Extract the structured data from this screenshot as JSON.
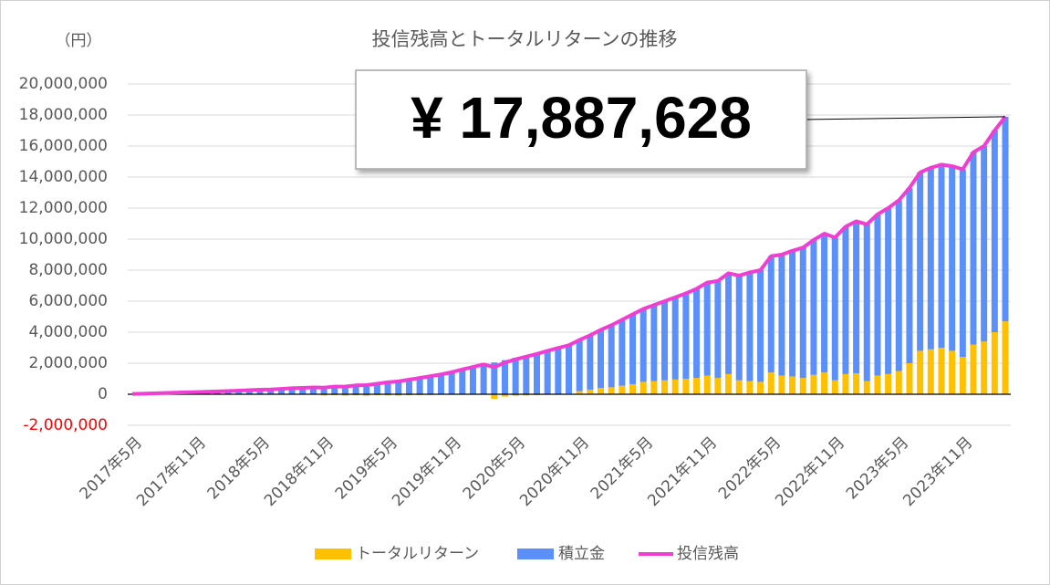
{
  "chart_data": {
    "type": "stacked-bar-line",
    "title": "投信残高とトータルリターンの推移",
    "unit_label": "（円）",
    "annotation": "¥ 17,887,628",
    "categories": [
      "2017年5月",
      null,
      null,
      null,
      null,
      null,
      "2017年11月",
      null,
      null,
      null,
      null,
      null,
      "2018年5月",
      null,
      null,
      null,
      null,
      null,
      "2018年11月",
      null,
      null,
      null,
      null,
      null,
      "2019年5月",
      null,
      null,
      null,
      null,
      null,
      "2019年11月",
      null,
      null,
      null,
      null,
      null,
      "2020年5月",
      null,
      null,
      null,
      null,
      null,
      "2020年11月",
      null,
      null,
      null,
      null,
      null,
      "2021年5月",
      null,
      null,
      null,
      null,
      null,
      "2021年11月",
      null,
      null,
      null,
      null,
      null,
      "2022年5月",
      null,
      null,
      null,
      null,
      null,
      "2022年11月",
      null,
      null,
      null,
      null,
      null,
      "2023年5月",
      null,
      null,
      null,
      null,
      null,
      "2023年11月",
      null,
      null,
      null,
      null
    ],
    "series": [
      {
        "name": "トータルリターン",
        "color": "#ffc000",
        "kind": "bar",
        "values": [
          0,
          0,
          1000,
          2000,
          2000,
          3000,
          3000,
          4000,
          4000,
          5000,
          5000,
          6000,
          4000,
          -10000,
          -5000,
          0,
          -20000,
          -30000,
          -80000,
          -60000,
          -90000,
          -70000,
          -100000,
          -60000,
          -80000,
          -90000,
          -60000,
          -50000,
          -40000,
          -20000,
          -30000,
          0,
          10000,
          20000,
          -300000,
          -150000,
          -100000,
          -80000,
          -50000,
          0,
          30000,
          60000,
          200000,
          300000,
          400000,
          450000,
          550000,
          650000,
          800000,
          850000,
          900000,
          950000,
          1000000,
          1050000,
          1200000,
          1050000,
          1300000,
          900000,
          850000,
          800000,
          1400000,
          1200000,
          1150000,
          1050000,
          1250000,
          1400000,
          900000,
          1300000,
          1350000,
          850000,
          1200000,
          1300000,
          1500000,
          2000000,
          2800000,
          2900000,
          3000000,
          2800000,
          2400000,
          3200000,
          3400000,
          4000000,
          4700000
        ]
      },
      {
        "name": "積立金",
        "color": "#5b8ff9",
        "kind": "bar",
        "values": [
          20000,
          40000,
          60000,
          80000,
          100000,
          120000,
          140000,
          160000,
          180000,
          200000,
          230000,
          260000,
          290000,
          320000,
          350000,
          390000,
          430000,
          470000,
          510000,
          550000,
          590000,
          640000,
          690000,
          740000,
          850000,
          920000,
          1000000,
          1100000,
          1200000,
          1300000,
          1450000,
          1600000,
          1750000,
          1900000,
          2050000,
          2200000,
          2350000,
          2500000,
          2650000,
          2800000,
          2950000,
          3100000,
          3300000,
          3500000,
          3750000,
          4000000,
          4250000,
          4500000,
          4700000,
          4900000,
          5100000,
          5300000,
          5500000,
          5750000,
          6000000,
          6250000,
          6500000,
          6750000,
          7000000,
          7200000,
          7500000,
          7800000,
          8100000,
          8400000,
          8700000,
          8950000,
          9200000,
          9500000,
          9800000,
          10100000,
          10400000,
          10700000,
          11000000,
          11300000,
          11500000,
          11700000,
          11800000,
          11900000,
          12100000,
          12400000,
          12600000,
          13000000,
          13187628
        ]
      },
      {
        "name": "投信残高",
        "color": "#f03ed2",
        "kind": "line",
        "values": [
          20000,
          40000,
          61000,
          82000,
          102000,
          123000,
          143000,
          164000,
          184000,
          205000,
          235000,
          266000,
          294000,
          310000,
          345000,
          390000,
          410000,
          440000,
          430000,
          490000,
          500000,
          570000,
          590000,
          680000,
          770000,
          830000,
          940000,
          1050000,
          1160000,
          1280000,
          1420000,
          1600000,
          1760000,
          1920000,
          1750000,
          2050000,
          2250000,
          2420000,
          2600000,
          2800000,
          2980000,
          3160000,
          3500000,
          3800000,
          4150000,
          4450000,
          4800000,
          5150000,
          5500000,
          5750000,
          6000000,
          6250000,
          6500000,
          6800000,
          7200000,
          7300000,
          7800000,
          7650000,
          7850000,
          8000000,
          8900000,
          9000000,
          9250000,
          9450000,
          9950000,
          10350000,
          10100000,
          10800000,
          11150000,
          10950000,
          11600000,
          12000000,
          12500000,
          13300000,
          14300000,
          14600000,
          14800000,
          14700000,
          14500000,
          15600000,
          16000000,
          17000000,
          17887628
        ]
      }
    ],
    "ylim": [
      -2000000,
      20000000
    ],
    "yticks": [
      {
        "value": -2000000,
        "label": "-2,000,000"
      },
      0,
      {
        "value": 2000000,
        "label": "2,000,000"
      },
      {
        "value": 4000000,
        "label": "4,000,000"
      },
      {
        "value": 6000000,
        "label": "6,000,000"
      },
      {
        "value": 8000000,
        "label": "8,000,000"
      },
      {
        "value": 10000000,
        "label": "10,000,000"
      },
      {
        "value": 12000000,
        "label": "12,000,000"
      },
      {
        "value": 14000000,
        "label": "14,000,000"
      },
      {
        "value": 16000000,
        "label": "16,000,000"
      },
      {
        "value": 18000000,
        "label": "18,000,000"
      },
      {
        "value": 20000000,
        "label": "20,000,000"
      }
    ],
    "negative_tick_color": "#ff0000",
    "grid": true,
    "legend": "bottom"
  }
}
